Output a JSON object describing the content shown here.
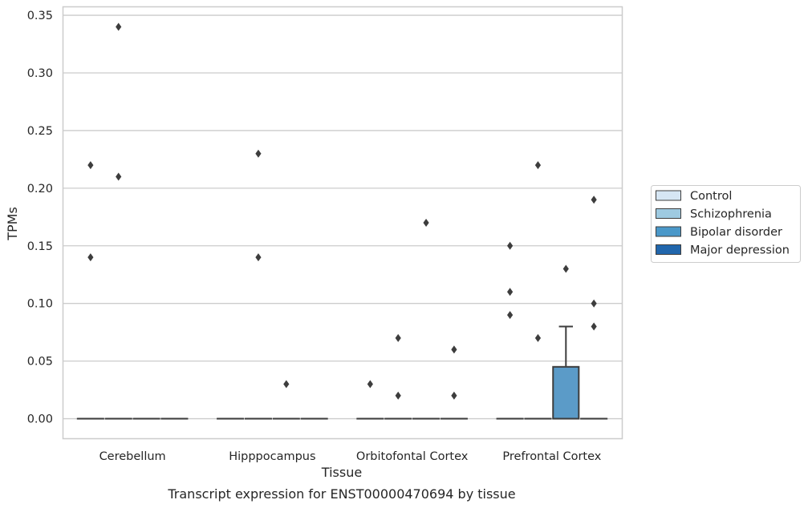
{
  "chart_data": {
    "type": "box",
    "title": "Transcript expression for ENST00000470694 by tissue",
    "xlabel": "Tissue",
    "ylabel": "TPMs",
    "ylim": [
      -0.017,
      0.357
    ],
    "yticks": [
      "0.00",
      "0.05",
      "0.10",
      "0.15",
      "0.20",
      "0.25",
      "0.30",
      "0.35"
    ],
    "ytick_values": [
      0,
      0.05,
      0.1,
      0.15,
      0.2,
      0.25,
      0.3,
      0.35
    ],
    "grid": true,
    "legend_position": "right",
    "categories": [
      "Cerebellum",
      "Hipppocampus",
      "Orbitofontal Cortex",
      "Prefrontal Cortex"
    ],
    "series": [
      {
        "name": "Control",
        "color": "#d6e6f4",
        "boxes": [
          {
            "category": "Cerebellum",
            "q1": 0,
            "median": 0,
            "q3": 0,
            "whisker_low": 0,
            "whisker_high": 0,
            "outliers": [
              0.22,
              0.14
            ]
          },
          {
            "category": "Hipppocampus",
            "q1": 0,
            "median": 0,
            "q3": 0,
            "whisker_low": 0,
            "whisker_high": 0,
            "outliers": []
          },
          {
            "category": "Orbitofontal Cortex",
            "q1": 0,
            "median": 0,
            "q3": 0,
            "whisker_low": 0,
            "whisker_high": 0,
            "outliers": [
              0.03
            ]
          },
          {
            "category": "Prefrontal Cortex",
            "q1": 0,
            "median": 0,
            "q3": 0,
            "whisker_low": 0,
            "whisker_high": 0,
            "outliers": [
              0.15,
              0.11,
              0.09
            ]
          }
        ]
      },
      {
        "name": "Schizophrenia",
        "color": "#9ecae1",
        "boxes": [
          {
            "category": "Cerebellum",
            "q1": 0,
            "median": 0,
            "q3": 0,
            "whisker_low": 0,
            "whisker_high": 0,
            "outliers": [
              0.34,
              0.21
            ]
          },
          {
            "category": "Hipppocampus",
            "q1": 0,
            "median": 0,
            "q3": 0,
            "whisker_low": 0,
            "whisker_high": 0,
            "outliers": [
              0.23,
              0.14
            ]
          },
          {
            "category": "Orbitofontal Cortex",
            "q1": 0,
            "median": 0,
            "q3": 0,
            "whisker_low": 0,
            "whisker_high": 0,
            "outliers": [
              0.07,
              0.02
            ]
          },
          {
            "category": "Prefrontal Cortex",
            "q1": 0,
            "median": 0,
            "q3": 0,
            "whisker_low": 0,
            "whisker_high": 0,
            "outliers": [
              0.22,
              0.07
            ]
          }
        ]
      },
      {
        "name": "Bipolar disorder",
        "color": "#4a98c9",
        "boxes": [
          {
            "category": "Cerebellum",
            "q1": 0,
            "median": 0,
            "q3": 0,
            "whisker_low": 0,
            "whisker_high": 0,
            "outliers": []
          },
          {
            "category": "Hipppocampus",
            "q1": 0,
            "median": 0,
            "q3": 0,
            "whisker_low": 0,
            "whisker_high": 0,
            "outliers": [
              0.03
            ]
          },
          {
            "category": "Orbitofontal Cortex",
            "q1": 0,
            "median": 0,
            "q3": 0,
            "whisker_low": 0,
            "whisker_high": 0,
            "outliers": [
              0.17
            ]
          },
          {
            "category": "Prefrontal Cortex",
            "q1": 0,
            "median": 0,
            "q3": 0.045,
            "whisker_low": 0,
            "whisker_high": 0.08,
            "outliers": [
              0.13
            ]
          }
        ]
      },
      {
        "name": "Major depression",
        "color": "#2166ac",
        "boxes": [
          {
            "category": "Cerebellum",
            "q1": 0,
            "median": 0,
            "q3": 0,
            "whisker_low": 0,
            "whisker_high": 0,
            "outliers": []
          },
          {
            "category": "Hipppocampus",
            "q1": 0,
            "median": 0,
            "q3": 0,
            "whisker_low": 0,
            "whisker_high": 0,
            "outliers": []
          },
          {
            "category": "Orbitofontal Cortex",
            "q1": 0,
            "median": 0,
            "q3": 0,
            "whisker_low": 0,
            "whisker_high": 0,
            "outliers": [
              0.06,
              0.02
            ]
          },
          {
            "category": "Prefrontal Cortex",
            "q1": 0,
            "median": 0,
            "q3": 0,
            "whisker_low": 0,
            "whisker_high": 0,
            "outliers": [
              0.19,
              0.1,
              0.08
            ]
          }
        ]
      }
    ],
    "box_fill_color": "#5b9bc8",
    "stroke_color": "#3d3d3d",
    "grid_color": "#cccccc",
    "frame_color": "#cccccc"
  }
}
